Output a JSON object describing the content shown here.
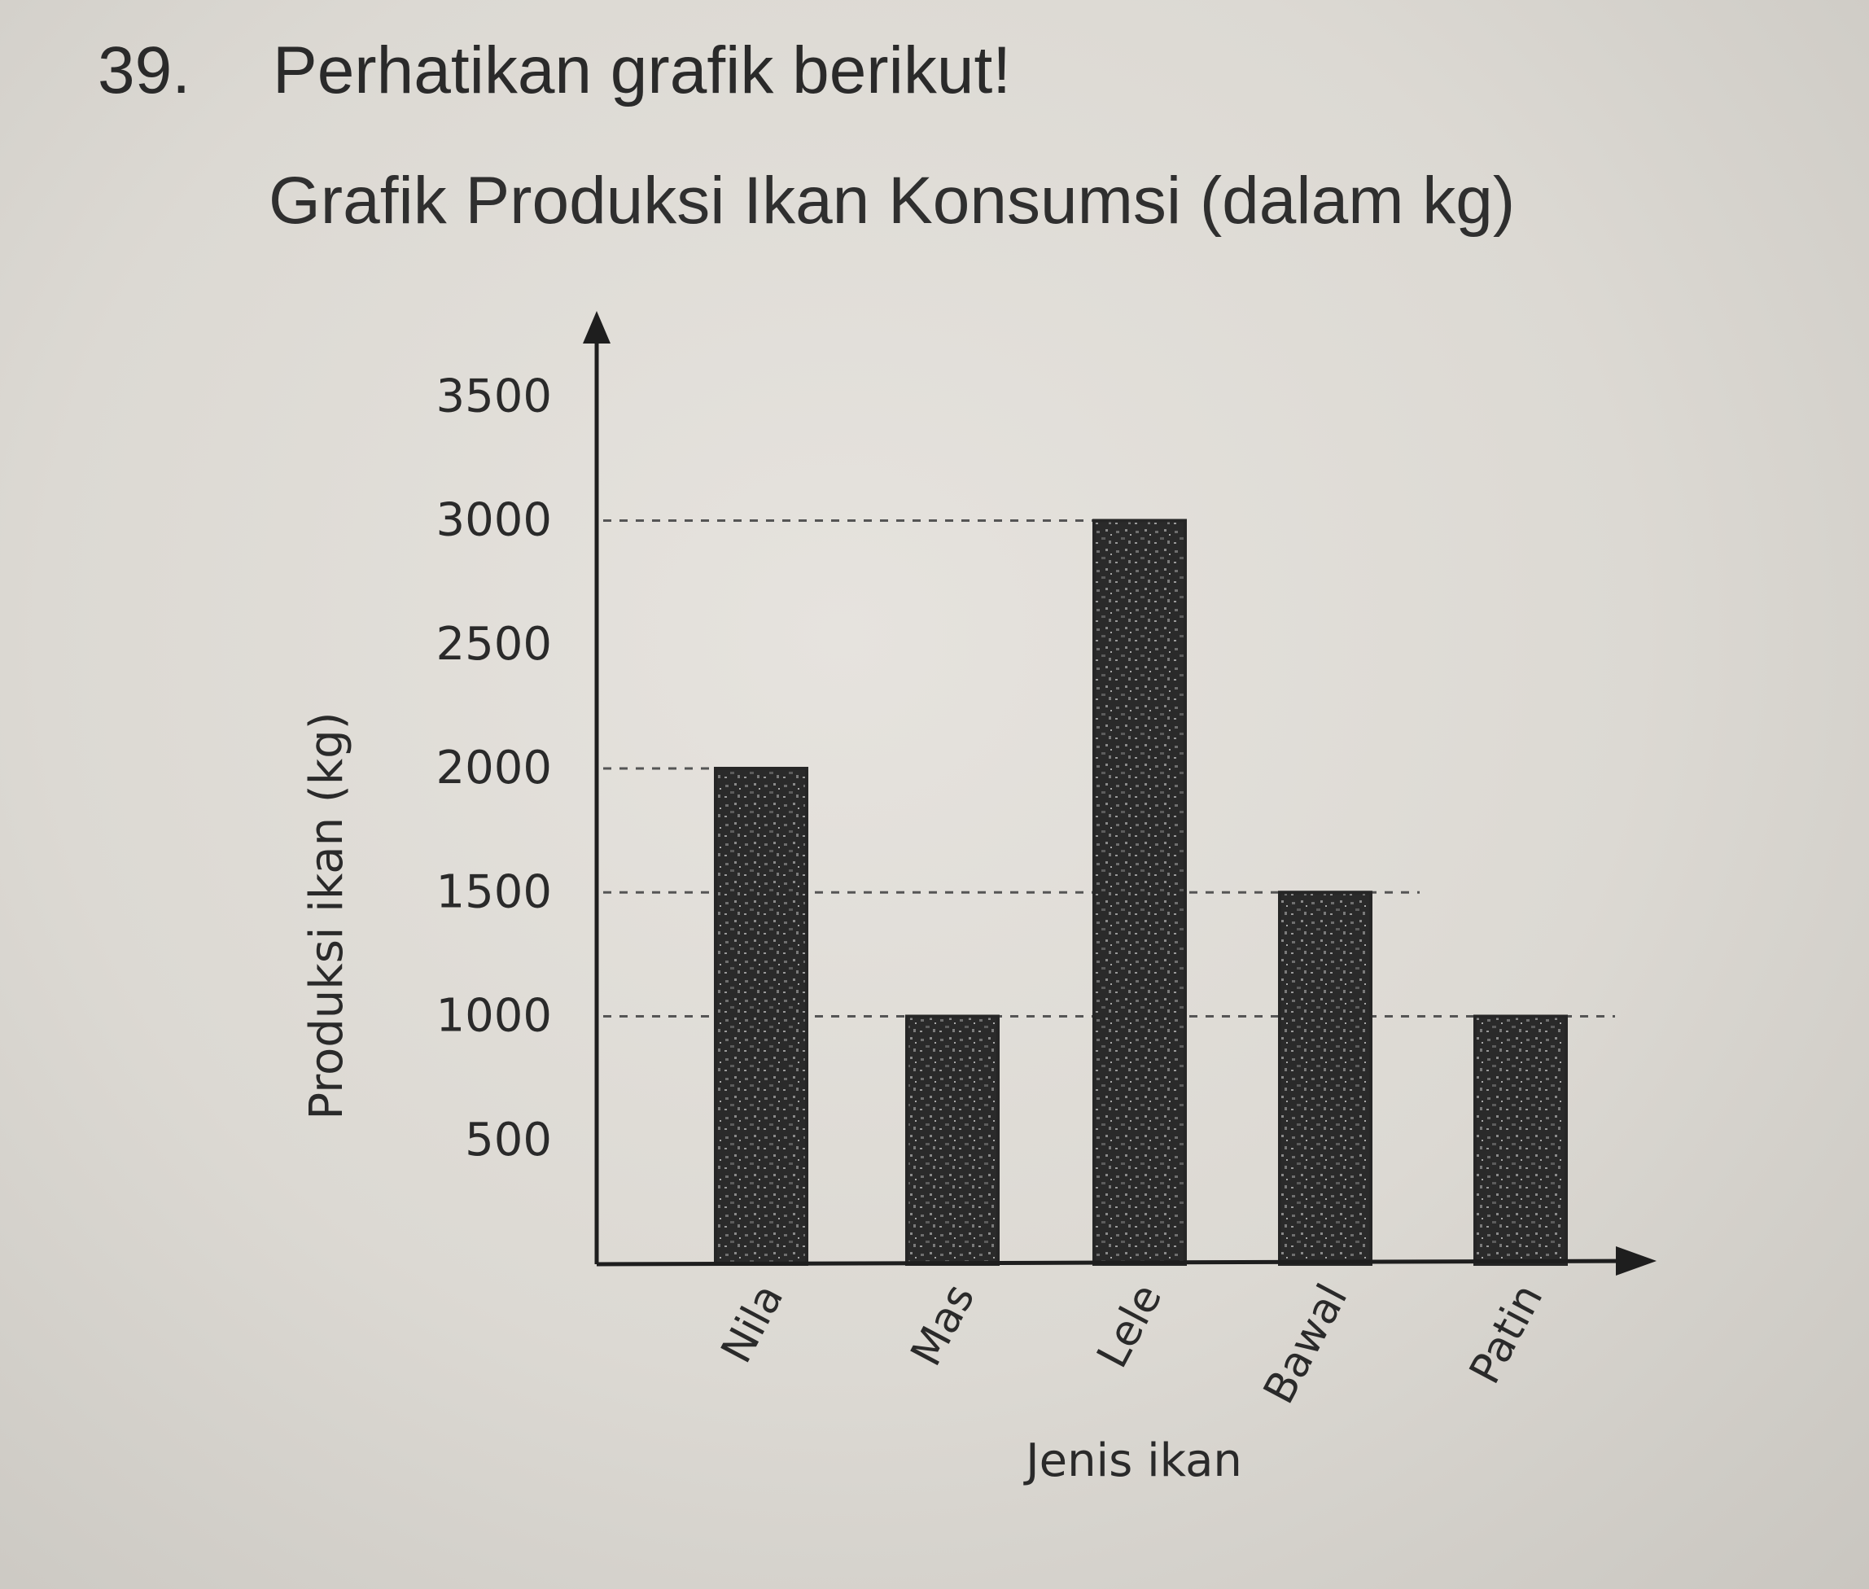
{
  "question": {
    "number": "39.",
    "text": "Perhatikan grafik berikut!"
  },
  "colors": {
    "bar": "#262626",
    "axis": "#1e1e1e",
    "guide": "#555555",
    "paper": "#e2dfda"
  },
  "chart_data": {
    "type": "bar",
    "title": "Grafik Produksi Ikan Konsumsi (dalam kg)",
    "xlabel": "Jenis ikan",
    "ylabel": "Produksi ikan (kg)",
    "categories": [
      "Nila",
      "Mas",
      "Lele",
      "Bawal",
      "Patin"
    ],
    "values": [
      2000,
      1000,
      3000,
      1500,
      1000
    ],
    "yticks": [
      500,
      1000,
      1500,
      2000,
      2500,
      3000,
      3500
    ],
    "ylim": [
      0,
      3500
    ],
    "grid": false,
    "guide_lines": [
      1000,
      1500,
      2000,
      3000
    ]
  }
}
